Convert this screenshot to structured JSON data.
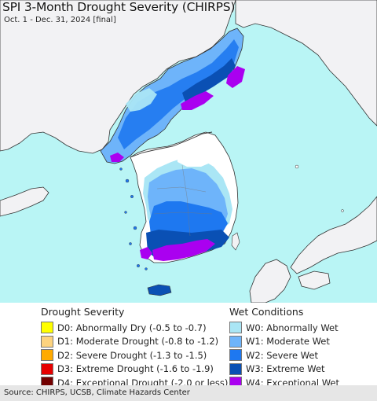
{
  "title": "SPI 3-Month Drought Severity (CHIRPS)",
  "subtitle": "Oct. 1 - Dec. 31, 2024 [final]",
  "colors": {
    "sea": "#b9f5f5",
    "land": "#f2f2f4",
    "no_data_land": "#ffffff",
    "border": "#333333"
  },
  "legend": {
    "drought": {
      "title": "Drought Severity",
      "items": [
        {
          "label": "D0: Abnormally Dry (-0.5 to -0.7)",
          "color": "#ffff00"
        },
        {
          "label": "D1: Moderate Drought (-0.8 to -1.2)",
          "color": "#fcd37f"
        },
        {
          "label": "D2: Severe Drought (-1.3 to -1.5)",
          "color": "#ffaa00"
        },
        {
          "label": "D3: Extreme Drought (-1.6 to -1.9)",
          "color": "#e60000"
        },
        {
          "label": "D4: Exceptional Drought (-2.0 or less)",
          "color": "#730000"
        }
      ]
    },
    "wet": {
      "title": "Wet Conditions",
      "items": [
        {
          "label": "W0: Abnormally Wet",
          "color": "#aae6f5"
        },
        {
          "label": "W1: Moderate Wet",
          "color": "#6eb4fa"
        },
        {
          "label": "W2: Severe Wet",
          "color": "#1e78f0"
        },
        {
          "label": "W3: Extreme Wet",
          "color": "#0a50b4"
        },
        {
          "label": "W4: Exceptional Wet",
          "color": "#aa00f0"
        }
      ]
    }
  },
  "source": "Source: CHIRPS, UCSB, Climate Hazards Center"
}
